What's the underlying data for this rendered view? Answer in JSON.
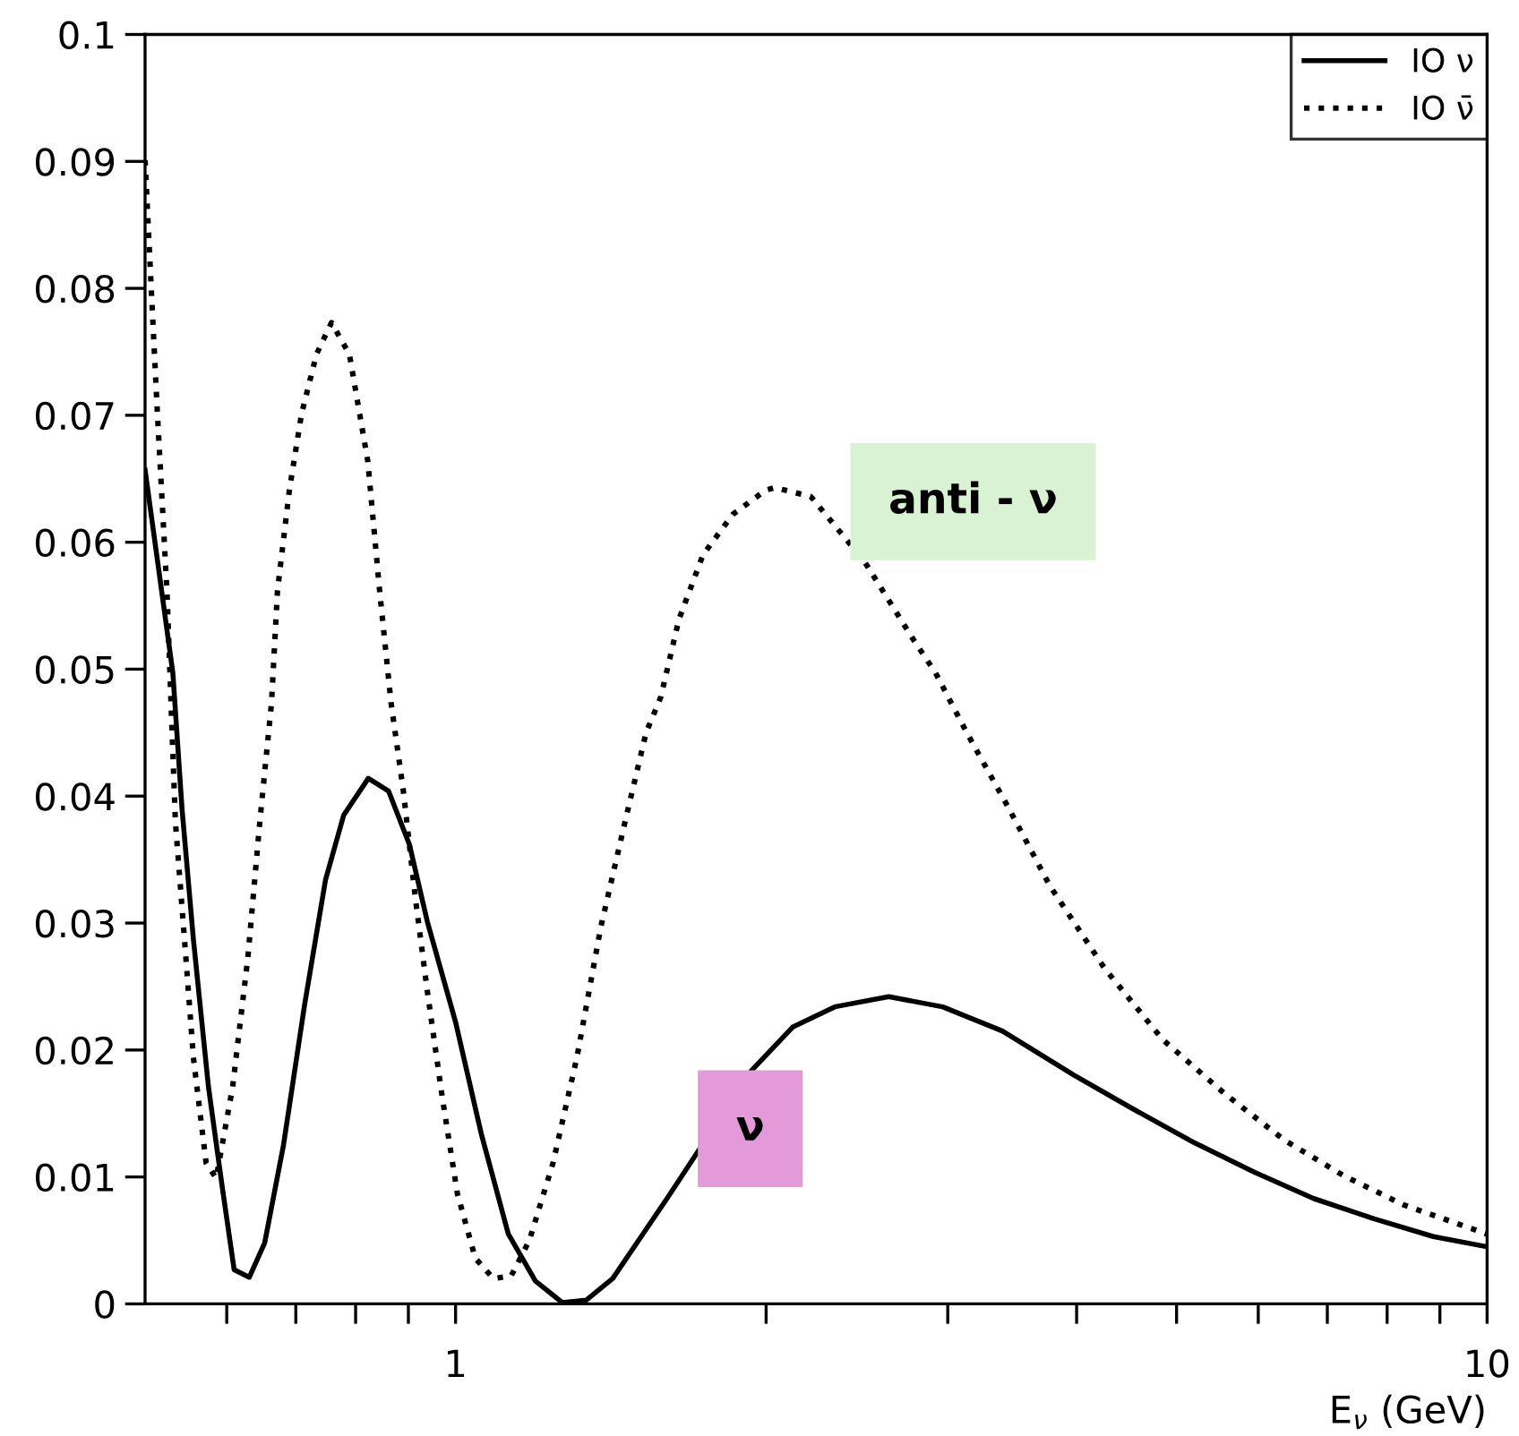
{
  "chart_data": {
    "type": "line",
    "xlabel": "E$_{ν}$ (GeV)",
    "log": "x",
    "legend": "top right",
    "xlim": [
      0.5,
      10
    ],
    "ylim": [
      0,
      0.1
    ],
    "xticks": [
      {
        "value": 0.6,
        "label": null
      },
      {
        "value": 0.7,
        "label": null
      },
      {
        "value": 0.8,
        "label": null
      },
      {
        "value": 0.9,
        "label": null
      },
      1,
      {
        "value": 2,
        "label": null
      },
      {
        "value": 3,
        "label": null
      },
      {
        "value": 4,
        "label": null
      },
      {
        "value": 5,
        "label": null
      },
      {
        "value": 6,
        "label": null
      },
      {
        "value": 7,
        "label": null
      },
      {
        "value": 8,
        "label": null
      },
      {
        "value": 9,
        "label": null
      },
      10
    ],
    "yticks": [
      0,
      0.01,
      0.02,
      0.03,
      0.04,
      0.05,
      0.06,
      0.07,
      0.08,
      0.09,
      0.1
    ],
    "series": [
      {
        "name": "IO ν",
        "color": "#000000",
        "line_style": "solid",
        "x": [
          0.5,
          0.532,
          0.543,
          0.557,
          0.576,
          0.594,
          0.61,
          0.631,
          0.653,
          0.681,
          0.714,
          0.748,
          0.779,
          0.823,
          0.861,
          0.902,
          0.939,
          1.0,
          1.059,
          1.125,
          1.195,
          1.269,
          1.339,
          1.42,
          1.519,
          1.603,
          1.932,
          2.122,
          2.331,
          2.63,
          2.966,
          3.389,
          3.979,
          4.55,
          5.2,
          5.94,
          6.79,
          7.77,
          8.87,
          10
        ],
        "values": [
          0.0657,
          0.0497,
          0.039,
          0.0287,
          0.0171,
          0.0092,
          0.0027,
          0.0021,
          0.0048,
          0.0125,
          0.0236,
          0.0334,
          0.0385,
          0.0414,
          0.0404,
          0.0362,
          0.0301,
          0.0222,
          0.0134,
          0.0055,
          0.0018,
          0.0001,
          0.0003,
          0.002,
          0.0055,
          0.0083,
          0.0183,
          0.0218,
          0.0234,
          0.0242,
          0.0234,
          0.0215,
          0.018,
          0.0153,
          0.0127,
          0.0104,
          0.0083,
          0.0067,
          0.0053,
          0.0045
        ]
      },
      {
        "name": "IO ν̄",
        "color": "#000000",
        "line_style": "dotted",
        "x": [
          0.5,
          0.508,
          0.514,
          0.525,
          0.535,
          0.546,
          0.557,
          0.573,
          0.586,
          0.608,
          0.629,
          0.646,
          0.663,
          0.672,
          0.69,
          0.709,
          0.733,
          0.758,
          0.789,
          0.822,
          0.844,
          0.866,
          0.89,
          0.914,
          0.939,
          0.971,
          1.004,
          1.045,
          1.088,
          1.132,
          1.179,
          1.243,
          1.311,
          1.383,
          1.46,
          1.53,
          1.581,
          1.646,
          1.737,
          1.857,
          1.998,
          2.04,
          2.21,
          2.49,
          2.77,
          2.92,
          3.13,
          3.44,
          3.77,
          4.26,
          4.85,
          5.56,
          6.36,
          7.26,
          8.3,
          10
        ],
        "values": [
          0.0901,
          0.0785,
          0.0701,
          0.0562,
          0.038,
          0.0287,
          0.0194,
          0.0111,
          0.0099,
          0.0171,
          0.0273,
          0.038,
          0.0473,
          0.0562,
          0.0641,
          0.0701,
          0.0748,
          0.0773,
          0.0748,
          0.0664,
          0.0562,
          0.0473,
          0.0404,
          0.032,
          0.0246,
          0.0162,
          0.0087,
          0.0036,
          0.002,
          0.0022,
          0.005,
          0.0111,
          0.0194,
          0.0297,
          0.038,
          0.045,
          0.0478,
          0.0539,
          0.059,
          0.0622,
          0.0641,
          0.0643,
          0.0636,
          0.0585,
          0.0525,
          0.0497,
          0.045,
          0.039,
          0.0329,
          0.0264,
          0.0208,
          0.0166,
          0.0129,
          0.0101,
          0.0078,
          0.0055
        ]
      }
    ],
    "annotations": [
      "anti - ν",
      "ν"
    ]
  }
}
